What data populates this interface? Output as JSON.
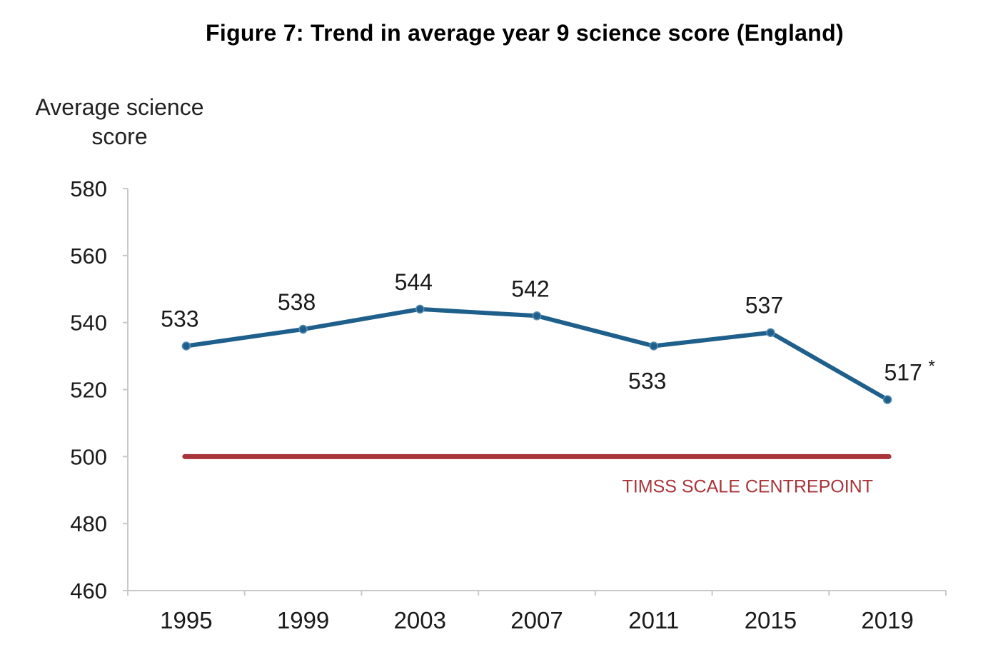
{
  "figure": {
    "title": "Figure 7: Trend in average year 9 science score (England)"
  },
  "chart_data": {
    "type": "line",
    "title": "Figure 7: Trend in average year 9 science score (England)",
    "ylabel_line1": "Average science",
    "ylabel_line2": "score",
    "xlabel": "",
    "categories": [
      "1995",
      "1999",
      "2003",
      "2007",
      "2011",
      "2015",
      "2019"
    ],
    "series": [
      {
        "values": [
          533,
          538,
          544,
          542,
          533,
          537,
          517
        ],
        "color": "#1f5f8b"
      }
    ],
    "data_labels": [
      "533",
      "538",
      "544",
      "542",
      "533",
      "537",
      "517"
    ],
    "data_label_positions": [
      "above",
      "above",
      "above",
      "above",
      "below",
      "above",
      "above"
    ],
    "significance_marker": {
      "category": "2019",
      "symbol": "*"
    },
    "reference_line": {
      "value": 500,
      "label": "TIMSS SCALE CENTREPOINT",
      "color": "#a8353a"
    },
    "ylim": [
      460,
      580
    ],
    "yticks": [
      460,
      480,
      500,
      520,
      540,
      560,
      580
    ],
    "grid": false,
    "legend": "none",
    "axis_color": "#c8c8c8",
    "text_color": "#1a1a1a"
  }
}
